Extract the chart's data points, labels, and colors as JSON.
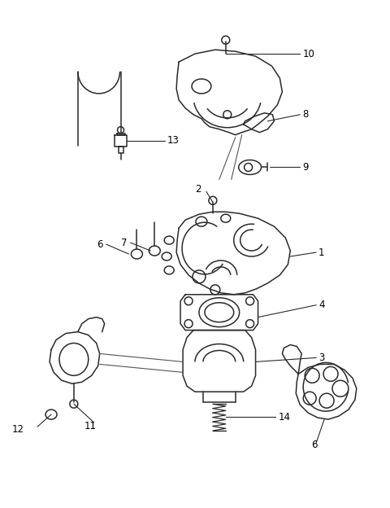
{
  "bg_color": "#ffffff",
  "line_color": "#2a2a2a",
  "fig_width": 4.8,
  "fig_height": 6.24,
  "dpi": 100,
  "lw": 1.1
}
